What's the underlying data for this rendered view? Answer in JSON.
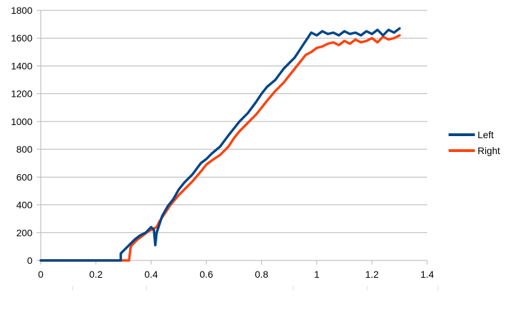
{
  "chart_data": {
    "type": "line",
    "title": "",
    "xlabel": "",
    "ylabel": "",
    "xlim": [
      0,
      1.4
    ],
    "ylim": [
      0,
      1800
    ],
    "xticks": [
      "0",
      "0.2",
      "0.4",
      "0.6",
      "0.8",
      "1",
      "1.2",
      "1.4"
    ],
    "yticks": [
      "0",
      "200",
      "400",
      "600",
      "800",
      "1000",
      "1200",
      "1400",
      "1600",
      "1800"
    ],
    "grid": "horizontal",
    "legend_position": "right",
    "series": [
      {
        "name": "Left",
        "color": "#004586",
        "x": [
          0,
          0.29,
          0.29,
          0.3,
          0.32,
          0.34,
          0.36,
          0.38,
          0.4,
          0.41,
          0.415,
          0.42,
          0.43,
          0.44,
          0.46,
          0.48,
          0.5,
          0.52,
          0.55,
          0.58,
          0.6,
          0.62,
          0.65,
          0.68,
          0.7,
          0.72,
          0.75,
          0.78,
          0.8,
          0.82,
          0.85,
          0.88,
          0.9,
          0.92,
          0.94,
          0.96,
          0.98,
          1.0,
          1.02,
          1.04,
          1.06,
          1.08,
          1.1,
          1.12,
          1.14,
          1.16,
          1.18,
          1.2,
          1.22,
          1.24,
          1.26,
          1.28,
          1.3
        ],
        "y": [
          0,
          0,
          50,
          70,
          110,
          150,
          180,
          200,
          240,
          220,
          110,
          200,
          260,
          320,
          390,
          440,
          510,
          560,
          620,
          700,
          730,
          770,
          820,
          900,
          950,
          1000,
          1060,
          1140,
          1200,
          1250,
          1300,
          1380,
          1420,
          1460,
          1520,
          1580,
          1640,
          1620,
          1650,
          1630,
          1640,
          1620,
          1650,
          1630,
          1640,
          1620,
          1650,
          1630,
          1660,
          1620,
          1660,
          1640,
          1670
        ]
      },
      {
        "name": "Right",
        "color": "#ff420e",
        "x": [
          0,
          0.32,
          0.325,
          0.33,
          0.35,
          0.37,
          0.39,
          0.41,
          0.42,
          0.43,
          0.45,
          0.47,
          0.5,
          0.52,
          0.55,
          0.58,
          0.6,
          0.62,
          0.65,
          0.68,
          0.7,
          0.72,
          0.75,
          0.78,
          0.8,
          0.82,
          0.85,
          0.88,
          0.9,
          0.92,
          0.94,
          0.96,
          0.98,
          1.0,
          1.02,
          1.04,
          1.06,
          1.08,
          1.1,
          1.12,
          1.14,
          1.16,
          1.18,
          1.2,
          1.22,
          1.24,
          1.26,
          1.28,
          1.3
        ],
        "y": [
          0,
          0,
          90,
          110,
          150,
          180,
          210,
          230,
          240,
          280,
          340,
          400,
          470,
          510,
          570,
          640,
          690,
          720,
          760,
          820,
          880,
          930,
          990,
          1050,
          1100,
          1150,
          1220,
          1280,
          1330,
          1380,
          1430,
          1480,
          1500,
          1530,
          1540,
          1560,
          1570,
          1550,
          1580,
          1560,
          1590,
          1570,
          1580,
          1600,
          1570,
          1610,
          1590,
          1600,
          1620
        ]
      }
    ]
  }
}
